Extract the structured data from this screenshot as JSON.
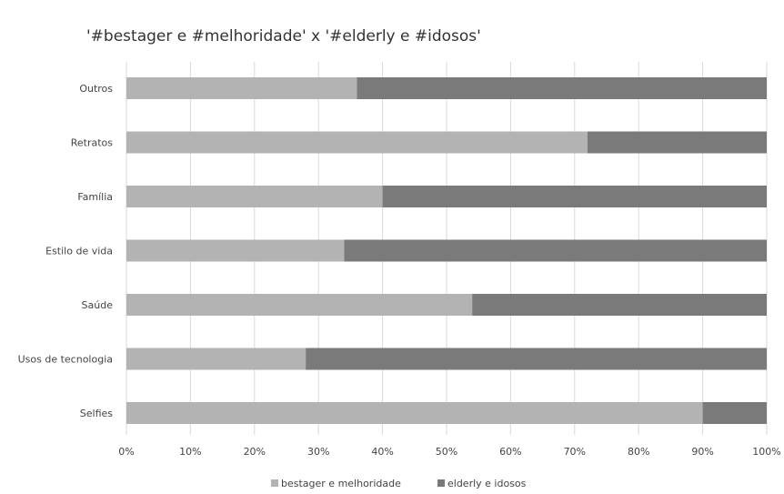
{
  "chart_data": {
    "type": "bar",
    "orientation": "horizontal",
    "stacked": "percent",
    "title": "'#bestager e #melhoridade' x '#elderly e #idosos'",
    "categories": [
      "Outros",
      "Retratos",
      "Família",
      "Estilo de vida",
      "Saúde",
      "Usos de tecnologia",
      "Selfies"
    ],
    "series": [
      {
        "name": "bestager e melhoridade",
        "values": [
          36,
          72,
          40,
          34,
          54,
          28,
          90
        ],
        "color": "#b3b3b3"
      },
      {
        "name": "elderly e idosos",
        "values": [
          64,
          28,
          60,
          66,
          46,
          72,
          10
        ],
        "color": "#7a7a7a"
      }
    ],
    "x_ticks": [
      "0%",
      "10%",
      "20%",
      "30%",
      "40%",
      "50%",
      "60%",
      "70%",
      "80%",
      "90%",
      "100%"
    ],
    "xlim": [
      0,
      100
    ],
    "grid": true,
    "legend_position": "bottom"
  }
}
